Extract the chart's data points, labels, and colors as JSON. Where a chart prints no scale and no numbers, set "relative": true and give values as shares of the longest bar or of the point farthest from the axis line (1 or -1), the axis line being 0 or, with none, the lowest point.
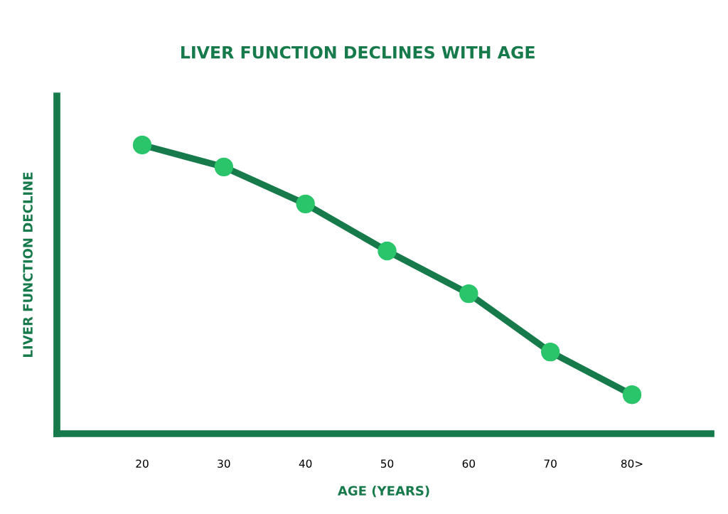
{
  "chart_data": {
    "type": "line",
    "title": "LIVER FUNCTION DECLINES WITH AGE",
    "xlabel": "AGE (YEARS)",
    "ylabel": "LIVER FUNCTION DECLINE",
    "categories": [
      "20",
      "30",
      "40",
      "50",
      "60",
      "70",
      "80>"
    ],
    "relative": true,
    "series": [
      {
        "color": "#177a4b",
        "values": [
          1,
          0.924,
          0.796,
          0.633,
          0.485,
          0.283,
          0.135
        ]
      }
    ],
    "marker": "circle",
    "line_style": "solid",
    "grid": false
  }
}
